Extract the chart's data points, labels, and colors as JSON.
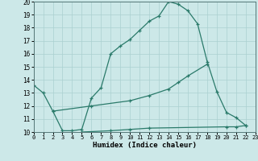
{
  "title": "",
  "xlabel": "Humidex (Indice chaleur)",
  "bg_color": "#cce8e8",
  "line_color": "#2a7a6a",
  "grid_color": "#aad0d0",
  "xlim": [
    0,
    23
  ],
  "ylim": [
    10,
    20
  ],
  "xticks": [
    0,
    1,
    2,
    3,
    4,
    5,
    6,
    7,
    8,
    9,
    10,
    11,
    12,
    13,
    14,
    15,
    16,
    17,
    18,
    19,
    20,
    21,
    22,
    23
  ],
  "yticks": [
    10,
    11,
    12,
    13,
    14,
    15,
    16,
    17,
    18,
    19,
    20
  ],
  "line1_x": [
    0,
    1,
    2,
    3,
    4,
    5,
    6,
    7,
    8,
    9,
    10,
    11,
    12,
    13,
    14,
    15,
    16,
    17,
    18,
    19,
    20,
    21,
    22
  ],
  "line1_y": [
    13.6,
    13.0,
    11.6,
    10.1,
    10.1,
    10.2,
    12.6,
    13.4,
    16.0,
    16.6,
    17.1,
    17.8,
    18.5,
    18.9,
    20.0,
    19.8,
    19.3,
    18.3,
    15.4,
    13.1,
    11.5,
    11.1,
    10.5
  ],
  "line2_x": [
    2,
    6,
    10,
    12,
    14,
    15,
    16,
    18
  ],
  "line2_y": [
    11.6,
    12.0,
    12.4,
    12.8,
    13.3,
    13.8,
    14.3,
    15.2
  ],
  "line3_x": [
    5,
    8,
    10,
    12,
    20,
    21,
    22
  ],
  "line3_y": [
    10.0,
    10.1,
    10.2,
    10.3,
    10.4,
    10.4,
    10.5
  ]
}
